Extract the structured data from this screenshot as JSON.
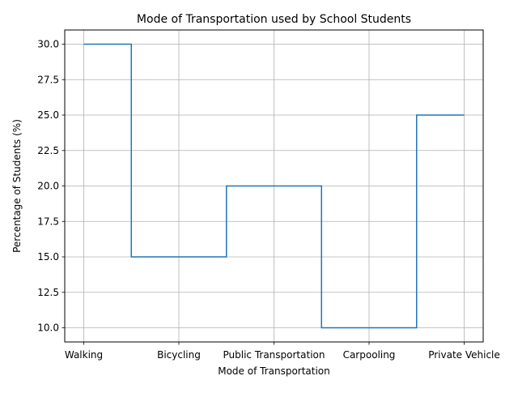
{
  "chart_data": {
    "type": "line",
    "drawstyle": "steps-mid",
    "title": "Mode of Transportation used by School Students",
    "xlabel": "Mode of Transportation",
    "ylabel": "Percentage of Students (%)",
    "categories": [
      "Walking",
      "Bicycling",
      "Public Transportation",
      "Carpooling",
      "Private Vehicle"
    ],
    "values": [
      30,
      15,
      20,
      10,
      25
    ],
    "ylim": [
      9.0,
      31.0
    ],
    "yticks": [
      10.0,
      12.5,
      15.0,
      17.5,
      20.0,
      22.5,
      25.0,
      27.5,
      30.0
    ],
    "ytick_labels": [
      "10.0",
      "12.5",
      "15.0",
      "17.5",
      "20.0",
      "22.5",
      "25.0",
      "27.5",
      "30.0"
    ],
    "grid": true,
    "legend": "none",
    "line_color": "#1f77b4",
    "grid_color": "#b0b0b0"
  }
}
